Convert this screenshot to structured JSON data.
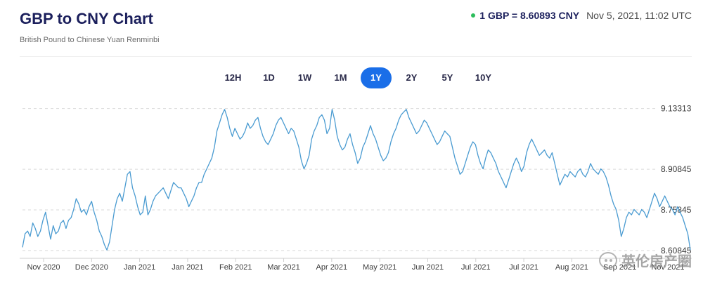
{
  "header": {
    "title": "GBP to CNY Chart",
    "subtitle": "British Pound to Chinese Yuan Renminbi",
    "rate_label": "1 GBP = 8.60893 CNY",
    "timestamp": "Nov 5, 2021, 11:02 UTC",
    "live_color": "#2dbd5c"
  },
  "range_tabs": [
    {
      "label": "12H",
      "active": false
    },
    {
      "label": "1D",
      "active": false
    },
    {
      "label": "1W",
      "active": false
    },
    {
      "label": "1M",
      "active": false
    },
    {
      "label": "1Y",
      "active": true
    },
    {
      "label": "2Y",
      "active": false
    },
    {
      "label": "5Y",
      "active": false
    },
    {
      "label": "10Y",
      "active": false
    }
  ],
  "watermark": {
    "text": "英伦房产圈",
    "icon": "wechat-icon"
  },
  "colors": {
    "line": "#4a9bd1",
    "accent": "#1a6ee8",
    "grid": "#d9d9d9"
  },
  "chart_data": {
    "type": "line",
    "title": "GBP to CNY Chart",
    "subtitle": "British Pound to Chinese Yuan Renminbi",
    "y_axis_side": "right",
    "y_ticks": [
      "9.13313",
      "8.90845",
      "8.75845",
      "8.60845"
    ],
    "y_tick_values": [
      9.13313,
      8.90845,
      8.75845,
      8.60845
    ],
    "ylim": [
      8.595,
      9.145
    ],
    "x_ticks": [
      "Nov 2020",
      "Dec 2020",
      "Jan 2021",
      "Jan 2021",
      "Feb 2021",
      "Mar 2021",
      "Apr 2021",
      "May 2021",
      "Jun 2021",
      "Jul 2021",
      "Jul 2021",
      "Aug 2021",
      "Sep 2021",
      "Nov 2021"
    ],
    "grid": "horizontal-dashed",
    "series": [
      {
        "values": [
          8.62,
          8.67,
          8.68,
          8.66,
          8.71,
          8.69,
          8.66,
          8.68,
          8.72,
          8.75,
          8.7,
          8.65,
          8.7,
          8.67,
          8.68,
          8.71,
          8.72,
          8.69,
          8.72,
          8.73,
          8.76,
          8.8,
          8.78,
          8.75,
          8.76,
          8.74,
          8.77,
          8.79,
          8.75,
          8.72,
          8.68,
          8.66,
          8.63,
          8.61,
          8.64,
          8.7,
          8.76,
          8.8,
          8.82,
          8.79,
          8.84,
          8.89,
          8.9,
          8.84,
          8.81,
          8.77,
          8.74,
          8.75,
          8.81,
          8.74,
          8.76,
          8.79,
          8.81,
          8.82,
          8.83,
          8.84,
          8.82,
          8.8,
          8.83,
          8.86,
          8.85,
          8.84,
          8.84,
          8.82,
          8.8,
          8.77,
          8.79,
          8.81,
          8.84,
          8.86,
          8.86,
          8.89,
          8.91,
          8.93,
          8.95,
          8.99,
          9.05,
          9.08,
          9.11,
          9.13,
          9.1,
          9.06,
          9.03,
          9.06,
          9.04,
          9.02,
          9.03,
          9.05,
          9.08,
          9.06,
          9.07,
          9.09,
          9.1,
          9.06,
          9.03,
          9.01,
          9.0,
          9.02,
          9.04,
          9.07,
          9.09,
          9.1,
          9.08,
          9.06,
          9.04,
          9.06,
          9.05,
          9.02,
          8.99,
          8.94,
          8.91,
          8.93,
          8.96,
          9.02,
          9.05,
          9.07,
          9.1,
          9.11,
          9.09,
          9.04,
          9.06,
          9.13,
          9.09,
          9.03,
          9.0,
          8.98,
          8.99,
          9.02,
          9.04,
          9.0,
          8.97,
          8.93,
          8.95,
          8.99,
          9.01,
          9.04,
          9.07,
          9.04,
          9.02,
          8.99,
          8.96,
          8.94,
          8.95,
          8.97,
          9.01,
          9.04,
          9.06,
          9.09,
          9.11,
          9.12,
          9.13,
          9.1,
          9.08,
          9.06,
          9.04,
          9.05,
          9.07,
          9.09,
          9.08,
          9.06,
          9.04,
          9.02,
          9.0,
          9.01,
          9.03,
          9.05,
          9.04,
          9.03,
          8.99,
          8.95,
          8.92,
          8.89,
          8.9,
          8.93,
          8.96,
          8.99,
          9.01,
          9.0,
          8.96,
          8.93,
          8.91,
          8.95,
          8.98,
          8.97,
          8.95,
          8.93,
          8.9,
          8.88,
          8.86,
          8.84,
          8.87,
          8.9,
          8.93,
          8.95,
          8.93,
          8.9,
          8.92,
          8.97,
          9.0,
          9.02,
          9.0,
          8.98,
          8.96,
          8.97,
          8.98,
          8.96,
          8.95,
          8.97,
          8.93,
          8.89,
          8.85,
          8.87,
          8.89,
          8.88,
          8.9,
          8.89,
          8.88,
          8.9,
          8.91,
          8.89,
          8.88,
          8.9,
          8.93,
          8.91,
          8.9,
          8.89,
          8.91,
          8.9,
          8.88,
          8.85,
          8.81,
          8.78,
          8.76,
          8.72,
          8.66,
          8.69,
          8.73,
          8.75,
          8.74,
          8.76,
          8.75,
          8.74,
          8.76,
          8.75,
          8.73,
          8.76,
          8.79,
          8.82,
          8.8,
          8.77,
          8.79,
          8.81,
          8.79,
          8.77,
          8.76,
          8.74,
          8.77,
          8.75,
          8.73,
          8.7,
          8.67,
          8.61
        ]
      }
    ]
  }
}
